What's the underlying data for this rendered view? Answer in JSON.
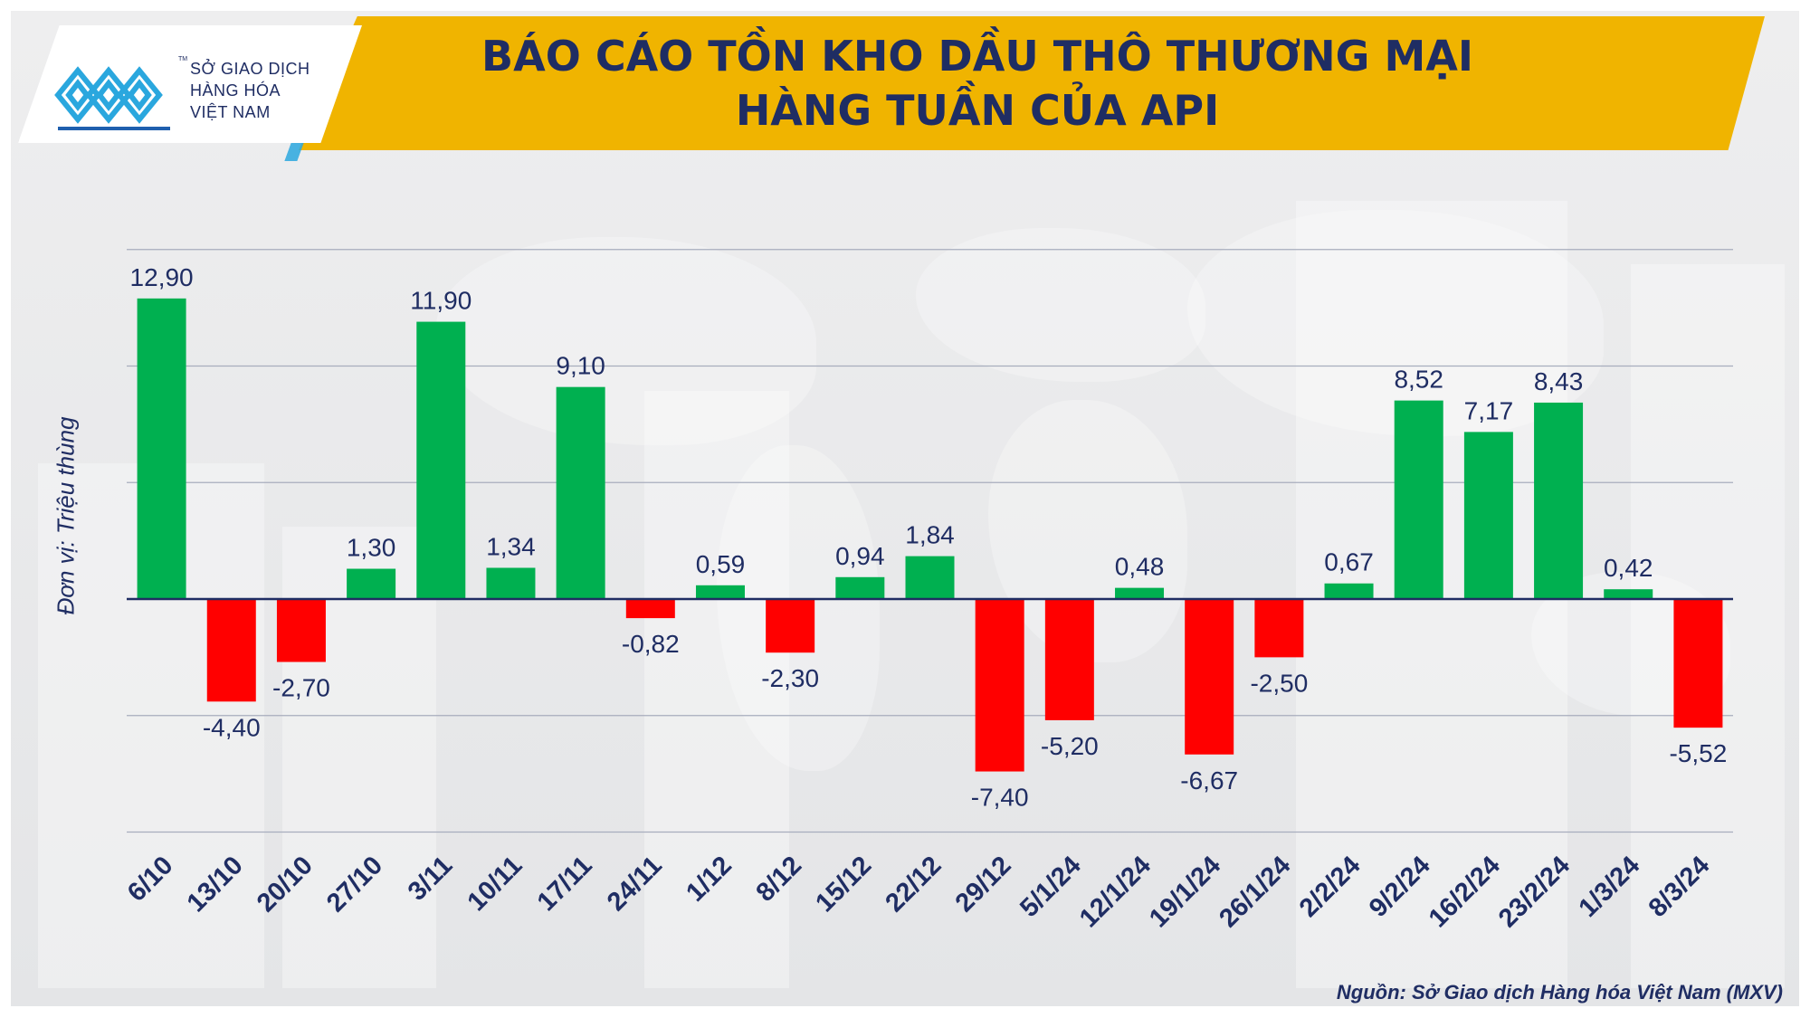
{
  "header": {
    "title_line1": "BÁO CÁO TỒN KHO DẦU THÔ THƯƠNG MẠI",
    "title_line2": "HÀNG TUẦN CỦA API"
  },
  "logo": {
    "line1": "SỞ GIAO DỊCH",
    "line2": "HÀNG HÓA",
    "line3": "VIỆT NAM",
    "tm": "TM"
  },
  "unit_label": "Đơn vị: Triệu thùng",
  "source_note": "Nguồn: Sở Giao dịch Hàng hóa Việt Nam (MXV)",
  "colors": {
    "banner": "#f0b400",
    "title_text": "#1f2d63",
    "positive_bar": "#00b050",
    "negative_bar": "#ff0000",
    "labels": "#1f2d63",
    "gridline": "#a7adbd",
    "zero_line": "#1f2d63"
  },
  "chart_data": {
    "type": "bar",
    "title": "BÁO CÁO TỒN KHO DẦU THÔ THƯƠNG MẠI HÀNG TUẦN CỦA API",
    "ylabel": "Đơn vị: Triệu thùng",
    "xlabel": "",
    "ylim": [
      -10,
      15
    ],
    "grid": true,
    "categories": [
      "6/10",
      "13/10",
      "20/10",
      "27/10",
      "3/11",
      "10/11",
      "17/11",
      "24/11",
      "1/12",
      "8/12",
      "15/12",
      "22/12",
      "29/12",
      "5/1/24",
      "12/1/24",
      "19/1/24",
      "26/1/24",
      "2/2/24",
      "9/2/24",
      "16/2/24",
      "23/2/24",
      "1/3/24",
      "8/3/24"
    ],
    "values": [
      12.9,
      -4.4,
      -2.7,
      1.3,
      11.9,
      1.34,
      9.1,
      -0.82,
      0.59,
      -2.3,
      0.94,
      1.84,
      -7.4,
      -5.2,
      0.48,
      -6.67,
      -2.5,
      0.67,
      8.52,
      7.17,
      8.43,
      0.42,
      -5.52
    ],
    "data_labels": [
      "12,90",
      "-4,40",
      "-2,70",
      "1,30",
      "11,90",
      "1,34",
      "9,10",
      "-0,82",
      "0,59",
      "-2,30",
      "0,94",
      "1,84",
      "-7,40",
      "-5,20",
      "0,48",
      "-6,67",
      "-2,50",
      "0,67",
      "8,52",
      "7,17",
      "8,43",
      "0,42",
      "-5,52"
    ]
  }
}
